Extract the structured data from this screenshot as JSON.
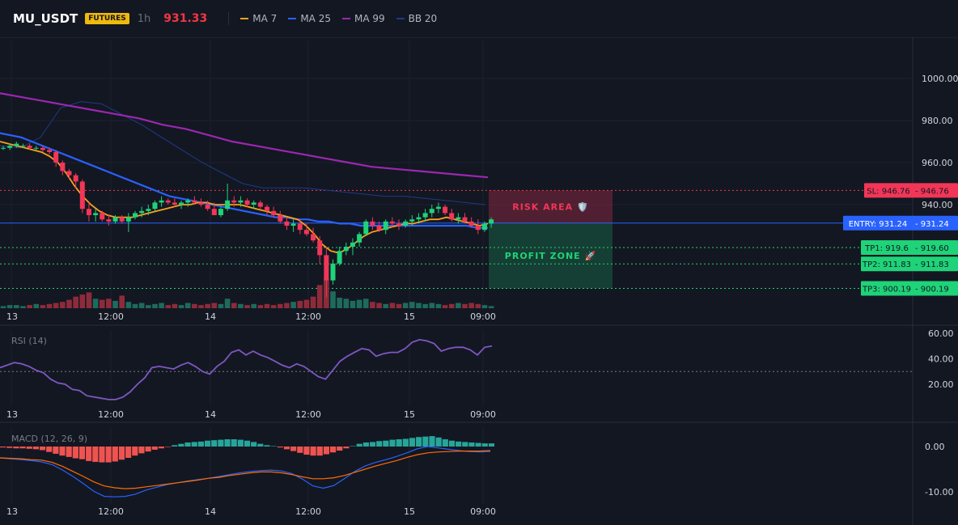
{
  "header": {
    "symbol": "MU_USDT",
    "badge": "FUTURES",
    "interval": "1h",
    "price": "931.33",
    "legend": [
      {
        "label": "MA 7",
        "color": "#f7a21b"
      },
      {
        "label": "MA 25",
        "color": "#2962ff"
      },
      {
        "label": "MA 99",
        "color": "#9c27b0"
      },
      {
        "label": "BB 20",
        "color": "#1e3a8a"
      }
    ]
  },
  "chart_data": [
    {
      "type": "candlestick",
      "title": "MU_USDT",
      "ylim": [
        878,
        1012
      ],
      "yticks": [
        "1000.00",
        "980.00",
        "960.00",
        "940.00"
      ],
      "time_labels": [
        "13",
        "12:00",
        "14",
        "12:00",
        "15",
        "09:00"
      ],
      "grid": true,
      "candles": [
        [
          967,
          968,
          966,
          967
        ],
        [
          967,
          969,
          966,
          968
        ],
        [
          968,
          970,
          967,
          969
        ],
        [
          968,
          969,
          967,
          968
        ],
        [
          968,
          969,
          966,
          967
        ],
        [
          967,
          968,
          966,
          967
        ],
        [
          967,
          968,
          965,
          966
        ],
        [
          966,
          967,
          964,
          965
        ],
        [
          965,
          966,
          958,
          960
        ],
        [
          960,
          961,
          954,
          956
        ],
        [
          956,
          957,
          952,
          954
        ],
        [
          954,
          955,
          948,
          951
        ],
        [
          951,
          952,
          936,
          938
        ],
        [
          938,
          941,
          932,
          935
        ],
        [
          935,
          938,
          932,
          936
        ],
        [
          936,
          937,
          932,
          933
        ],
        [
          933,
          935,
          930,
          932
        ],
        [
          932,
          935,
          931,
          934
        ],
        [
          934,
          935,
          931,
          932
        ],
        [
          932,
          936,
          927,
          934
        ],
        [
          934,
          937,
          933,
          936
        ],
        [
          936,
          939,
          934,
          937
        ],
        [
          937,
          940,
          935,
          938
        ],
        [
          938,
          942,
          937,
          941
        ],
        [
          941,
          944,
          939,
          942
        ],
        [
          942,
          943,
          940,
          941
        ],
        [
          941,
          943,
          939,
          940
        ],
        [
          940,
          942,
          938,
          941
        ],
        [
          941,
          943,
          939,
          942
        ],
        [
          942,
          944,
          940,
          941
        ],
        [
          941,
          943,
          939,
          940
        ],
        [
          940,
          942,
          937,
          938
        ],
        [
          938,
          941,
          936,
          935
        ],
        [
          935,
          939,
          934,
          938
        ],
        [
          938,
          950,
          937,
          942
        ],
        [
          942,
          944,
          939,
          941
        ],
        [
          941,
          944,
          939,
          942
        ],
        [
          942,
          943,
          939,
          940
        ],
        [
          940,
          942,
          938,
          941
        ],
        [
          941,
          942,
          938,
          939
        ],
        [
          939,
          940,
          935,
          937
        ],
        [
          937,
          939,
          934,
          935
        ],
        [
          935,
          937,
          931,
          932
        ],
        [
          932,
          934,
          928,
          930
        ],
        [
          930,
          933,
          927,
          931
        ],
        [
          931,
          933,
          926,
          928
        ],
        [
          928,
          931,
          925,
          926
        ],
        [
          926,
          929,
          922,
          923
        ],
        [
          923,
          925,
          912,
          916
        ],
        [
          916,
          920,
          896,
          904
        ],
        [
          904,
          914,
          902,
          912
        ],
        [
          912,
          920,
          911,
          918
        ],
        [
          918,
          922,
          916,
          920
        ],
        [
          920,
          924,
          916,
          922
        ],
        [
          922,
          927,
          920,
          926
        ],
        [
          926,
          933,
          925,
          932
        ],
        [
          932,
          934,
          928,
          930
        ],
        [
          930,
          932,
          927,
          928
        ],
        [
          928,
          933,
          926,
          932
        ],
        [
          932,
          934,
          929,
          931
        ],
        [
          931,
          933,
          928,
          930
        ],
        [
          930,
          933,
          929,
          932
        ],
        [
          932,
          935,
          930,
          933
        ],
        [
          933,
          936,
          931,
          934
        ],
        [
          934,
          938,
          932,
          936
        ],
        [
          936,
          940,
          934,
          938
        ],
        [
          938,
          941,
          936,
          939
        ],
        [
          939,
          940,
          935,
          936
        ],
        [
          936,
          938,
          932,
          933
        ],
        [
          933,
          936,
          931,
          934
        ],
        [
          934,
          936,
          931,
          932
        ],
        [
          932,
          934,
          929,
          930
        ],
        [
          930,
          933,
          926,
          928
        ],
        [
          928,
          932,
          927,
          931
        ],
        [
          931,
          934,
          929,
          933
        ]
      ],
      "volume": [
        2,
        3,
        3,
        2,
        3,
        4,
        3,
        4,
        5,
        6,
        8,
        11,
        13,
        15,
        9,
        8,
        9,
        7,
        12,
        6,
        4,
        5,
        3,
        4,
        5,
        3,
        4,
        3,
        5,
        4,
        3,
        4,
        5,
        4,
        9,
        5,
        4,
        3,
        4,
        3,
        4,
        3,
        4,
        5,
        6,
        7,
        8,
        11,
        22,
        28,
        16,
        10,
        9,
        7,
        8,
        9,
        6,
        5,
        4,
        5,
        4,
        5,
        6,
        5,
        4,
        5,
        4,
        3,
        4,
        5,
        4,
        5,
        4,
        3,
        2
      ],
      "series": [
        {
          "name": "MA 7",
          "color": "#f7a21b",
          "values": [
            970,
            969,
            968,
            967,
            966,
            965,
            963,
            960,
            955,
            949,
            944,
            940,
            937,
            935,
            934,
            934,
            934,
            935,
            936,
            937,
            938,
            939,
            940,
            940,
            941,
            941,
            940,
            940,
            940,
            940,
            939,
            938,
            937,
            936,
            935,
            934,
            933,
            930,
            926,
            921,
            918,
            917,
            919,
            922,
            925,
            927,
            928,
            929,
            930,
            931,
            931,
            932,
            933,
            933,
            934,
            933,
            932,
            931,
            930,
            931
          ]
        },
        {
          "name": "MA 25",
          "color": "#2962ff",
          "values": [
            974,
            973,
            972,
            970,
            968,
            966,
            964,
            962,
            960,
            958,
            956,
            954,
            952,
            950,
            948,
            946,
            944,
            943,
            942,
            941,
            940,
            939,
            938,
            937,
            936,
            935,
            934,
            934,
            933,
            933,
            932,
            932,
            931,
            931,
            930,
            930,
            930,
            930,
            930,
            930,
            930,
            930,
            930,
            930,
            930,
            929,
            929
          ]
        },
        {
          "name": "MA 99",
          "color": "#9c27b0",
          "values": [
            993,
            991,
            989,
            987,
            985,
            983,
            981,
            978,
            976,
            973,
            970,
            968,
            966,
            964,
            962,
            960,
            958,
            957,
            956,
            955,
            954,
            953
          ]
        },
        {
          "name": "BB 20",
          "color": "#1e3a8a",
          "values": [
            968,
            967,
            972,
            986,
            989,
            988,
            983,
            978,
            972,
            966,
            960,
            955,
            950,
            948,
            948,
            948,
            947,
            946,
            945,
            944,
            944,
            943,
            942,
            941,
            940
          ]
        }
      ],
      "levels": [
        {
          "label": "SL: 946.76",
          "value": 946.76,
          "text": "946.76",
          "color": "#f23658"
        },
        {
          "label": "ENTRY: 931.24",
          "value": 931.24,
          "text": "931.24",
          "color": "#2962ff"
        },
        {
          "label": "TP1: 919.6",
          "value": 919.6,
          "text": "919.60",
          "color": "#1fd378"
        },
        {
          "label": "TP2: 911.83",
          "value": 911.83,
          "text": "911.83",
          "color": "#1fd378"
        },
        {
          "label": "TP3: 900.19",
          "value": 900.19,
          "text": "900.19",
          "color": "#1fd378"
        }
      ],
      "zones": [
        {
          "label": "RISK AREA 🛡️",
          "from": 931.24,
          "to": 946.76,
          "color": "#f23658"
        },
        {
          "label": "PROFIT ZONE 🚀",
          "from": 900.19,
          "to": 931.24,
          "color": "#1fd378"
        }
      ]
    },
    {
      "type": "line",
      "title": "RSI (14)",
      "ylim": [
        0,
        70
      ],
      "yticks": [
        "60.00",
        "40.00",
        "20.00"
      ],
      "reference_line": 30,
      "time_labels": [
        "13",
        "12:00",
        "14",
        "12:00",
        "15",
        "09:00"
      ],
      "series": [
        {
          "name": "RSI (14)",
          "color": "#7e57c2",
          "values": [
            33,
            35,
            37,
            36,
            34,
            31,
            29,
            24,
            21,
            20,
            16,
            15,
            11,
            10,
            9,
            8,
            8,
            10,
            14,
            20,
            25,
            33,
            34,
            33,
            32,
            35,
            37,
            34,
            30,
            28,
            34,
            38,
            45,
            47,
            43,
            46,
            43,
            41,
            38,
            35,
            33,
            36,
            34,
            30,
            26,
            24,
            31,
            38,
            42,
            45,
            48,
            47,
            42,
            44,
            45,
            45,
            48,
            53,
            55,
            54,
            52,
            46,
            48,
            49,
            49,
            47,
            43,
            49,
            50
          ]
        }
      ]
    },
    {
      "type": "bar",
      "title": "MACD (12, 26, 9)",
      "ylim": [
        -15,
        3
      ],
      "yticks": [
        "0.00",
        "-10.00"
      ],
      "time_labels": [
        "13",
        "12:00",
        "14",
        "12:00",
        "15",
        "09:00"
      ],
      "histogram": [
        -0.2,
        -0.3,
        -0.4,
        -0.4,
        -0.5,
        -0.6,
        -0.8,
        -1.2,
        -1.6,
        -2.0,
        -2.3,
        -2.6,
        -2.8,
        -3.2,
        -3.4,
        -3.5,
        -3.5,
        -3.3,
        -2.9,
        -2.5,
        -2.0,
        -1.5,
        -1.1,
        -0.7,
        -0.4,
        -0.1,
        0.3,
        0.6,
        0.9,
        1.0,
        1.1,
        1.3,
        1.4,
        1.5,
        1.6,
        1.6,
        1.5,
        1.3,
        1.0,
        0.6,
        0.3,
        0.1,
        -0.2,
        -0.6,
        -1.0,
        -1.4,
        -1.8,
        -2.0,
        -2.0,
        -1.7,
        -1.3,
        -0.9,
        -0.4,
        0.1,
        0.6,
        0.9,
        1.0,
        1.2,
        1.3,
        1.5,
        1.6,
        1.7,
        1.9,
        2.1,
        2.2,
        2.3,
        2.0,
        1.6,
        1.3,
        1.1,
        1.0,
        0.9,
        0.8,
        0.7,
        0.7
      ],
      "series": [
        {
          "name": "MACD",
          "color": "#2962ff",
          "values": [
            -2.5,
            -2.7,
            -2.9,
            -3.1,
            -3.4,
            -4.0,
            -5.2,
            -6.6,
            -8.2,
            -9.9,
            -11.0,
            -11.1,
            -11.0,
            -10.5,
            -9.6,
            -9.0,
            -8.4,
            -8.0,
            -7.6,
            -7.3,
            -7.0,
            -6.6,
            -6.2,
            -5.8,
            -5.5,
            -5.3,
            -5.2,
            -5.4,
            -6.0,
            -7.2,
            -8.7,
            -9.2,
            -8.6,
            -7.1,
            -5.5,
            -4.3,
            -3.5,
            -2.9,
            -2.2,
            -1.4,
            -0.5,
            0.0,
            -0.3,
            -0.6,
            -0.9,
            -1.1,
            -1.2,
            -1.1
          ]
        },
        {
          "name": "Signal",
          "color": "#ff6d00",
          "values": [
            -2.5,
            -2.6,
            -2.7,
            -2.9,
            -3.0,
            -3.5,
            -4.4,
            -5.5,
            -6.6,
            -7.8,
            -8.7,
            -9.1,
            -9.3,
            -9.2,
            -8.9,
            -8.6,
            -8.3,
            -8.0,
            -7.7,
            -7.4,
            -7.0,
            -6.8,
            -6.4,
            -6.1,
            -5.8,
            -5.6,
            -5.6,
            -5.8,
            -6.2,
            -6.7,
            -7.1,
            -7.1,
            -6.9,
            -6.4,
            -5.7,
            -5.0,
            -4.3,
            -3.7,
            -3.1,
            -2.4,
            -1.8,
            -1.4,
            -1.2,
            -1.1,
            -1.0,
            -1.0,
            -1.0,
            -0.9
          ]
        }
      ]
    }
  ]
}
